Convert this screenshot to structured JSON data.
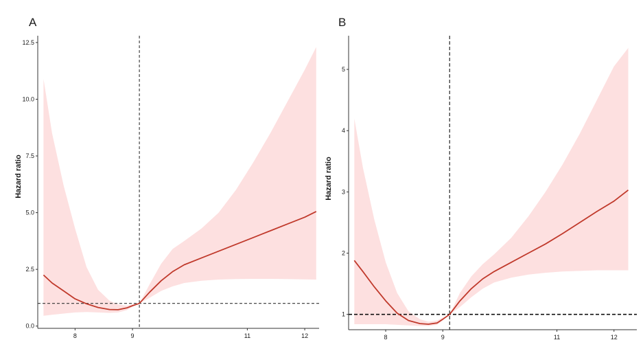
{
  "chart_data": [
    {
      "type": "line",
      "panel_label": "A",
      "ylabel": "Hazard ratio",
      "xlim": [
        7.35,
        12.25
      ],
      "ylim": [
        -0.1,
        12.8
      ],
      "x_ticks": [
        8,
        9,
        11,
        12
      ],
      "x_tick_labels": [
        "8",
        "9",
        "11",
        "12"
      ],
      "y_ticks": [
        0,
        2.5,
        5,
        7.5,
        10,
        12.5
      ],
      "y_tick_labels": [
        "0.0",
        "2.5",
        "5.0",
        "7.5",
        "10.0",
        "12.5"
      ],
      "reference_hline": 1,
      "reference_vline": 9.12,
      "colors": {
        "line": "#c0392b",
        "band": "#fde0e0",
        "reference": "#333333"
      },
      "series": [
        {
          "x": [
            7.45,
            7.6,
            7.8,
            8.0,
            8.2,
            8.4,
            8.6,
            8.75,
            8.9,
            9.0,
            9.12,
            9.3,
            9.5,
            9.7,
            9.9,
            10.2,
            10.5,
            10.8,
            11.1,
            11.4,
            11.7,
            12.0,
            12.2
          ],
          "y": [
            2.25,
            1.9,
            1.55,
            1.2,
            0.98,
            0.82,
            0.73,
            0.72,
            0.8,
            0.9,
            1.0,
            1.5,
            2.0,
            2.4,
            2.7,
            3.0,
            3.3,
            3.6,
            3.9,
            4.2,
            4.5,
            4.8,
            5.05
          ],
          "lower": [
            0.45,
            0.5,
            0.55,
            0.6,
            0.62,
            0.6,
            0.58,
            0.6,
            0.7,
            0.85,
            1.0,
            1.25,
            1.55,
            1.75,
            1.9,
            2.0,
            2.05,
            2.07,
            2.08,
            2.08,
            2.07,
            2.06,
            2.05
          ],
          "upper": [
            10.9,
            8.5,
            6.2,
            4.3,
            2.6,
            1.6,
            1.12,
            0.95,
            0.9,
            0.95,
            1.0,
            1.85,
            2.75,
            3.4,
            3.75,
            4.3,
            5.0,
            6.0,
            7.2,
            8.5,
            9.9,
            11.3,
            12.3
          ]
        }
      ]
    },
    {
      "type": "line",
      "panel_label": "B",
      "ylabel": "Hazard ratio",
      "xlim": [
        7.35,
        12.4
      ],
      "ylim": [
        0.75,
        5.55
      ],
      "x_ticks": [
        8,
        9,
        11,
        12
      ],
      "x_tick_labels": [
        "8",
        "9",
        "11",
        "12"
      ],
      "y_ticks": [
        1,
        2,
        3,
        4,
        5
      ],
      "y_tick_labels": [
        "1",
        "2",
        "3",
        "4",
        "5"
      ],
      "reference_hline": 1,
      "reference_vline": 9.12,
      "colors": {
        "line": "#c0392b",
        "band": "#fde0e0",
        "reference": "#111111"
      },
      "series": [
        {
          "x": [
            7.45,
            7.6,
            7.8,
            8.0,
            8.2,
            8.4,
            8.6,
            8.75,
            8.9,
            9.0,
            9.12,
            9.3,
            9.5,
            9.7,
            9.9,
            10.2,
            10.5,
            10.8,
            11.1,
            11.4,
            11.7,
            12.0,
            12.25
          ],
          "y": [
            1.88,
            1.7,
            1.45,
            1.22,
            1.02,
            0.9,
            0.85,
            0.84,
            0.86,
            0.92,
            1.0,
            1.22,
            1.42,
            1.58,
            1.7,
            1.85,
            2.0,
            2.15,
            2.32,
            2.5,
            2.68,
            2.85,
            3.03
          ],
          "lower": [
            0.84,
            0.84,
            0.84,
            0.84,
            0.83,
            0.82,
            0.81,
            0.81,
            0.83,
            0.9,
            1.0,
            1.12,
            1.28,
            1.42,
            1.52,
            1.6,
            1.65,
            1.68,
            1.7,
            1.71,
            1.72,
            1.72,
            1.72
          ],
          "upper": [
            4.2,
            3.4,
            2.55,
            1.85,
            1.35,
            1.05,
            0.92,
            0.88,
            0.9,
            0.95,
            1.0,
            1.35,
            1.62,
            1.82,
            1.98,
            2.25,
            2.6,
            3.0,
            3.45,
            3.95,
            4.5,
            5.05,
            5.35
          ]
        }
      ]
    }
  ]
}
